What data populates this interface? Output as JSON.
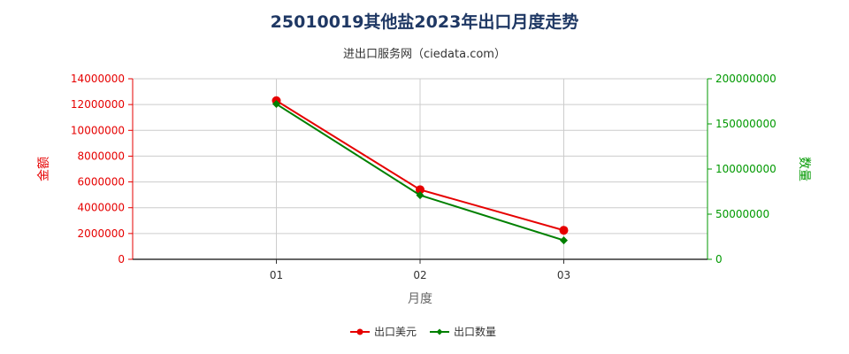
{
  "page": {
    "title": "25010019其他盐2023年出口月度走势",
    "subtitle": "进出口服务网（ciedata.com）"
  },
  "chart_data": {
    "type": "line",
    "categories": [
      "01",
      "02",
      "03"
    ],
    "xlabel": "月度",
    "y_left": {
      "label": "金额",
      "ylim": [
        0,
        14000000
      ],
      "ticks": [
        0,
        2000000,
        4000000,
        6000000,
        8000000,
        10000000,
        12000000,
        14000000
      ],
      "color": "#e60000"
    },
    "y_right": {
      "label": "数量",
      "ylim": [
        0,
        200000000
      ],
      "ticks": [
        0,
        50000000,
        100000000,
        150000000,
        200000000
      ],
      "color": "#009900"
    },
    "series": [
      {
        "name": "出口美元",
        "axis": "left",
        "color": "#e60000",
        "marker": "circle",
        "values": [
          12300000,
          5400000,
          2250000
        ]
      },
      {
        "name": "出口数量",
        "axis": "right",
        "color": "#008000",
        "marker": "diamond",
        "values": [
          172000000,
          71000000,
          21000000
        ]
      }
    ],
    "grid": true,
    "legend_position": "bottom-center"
  }
}
